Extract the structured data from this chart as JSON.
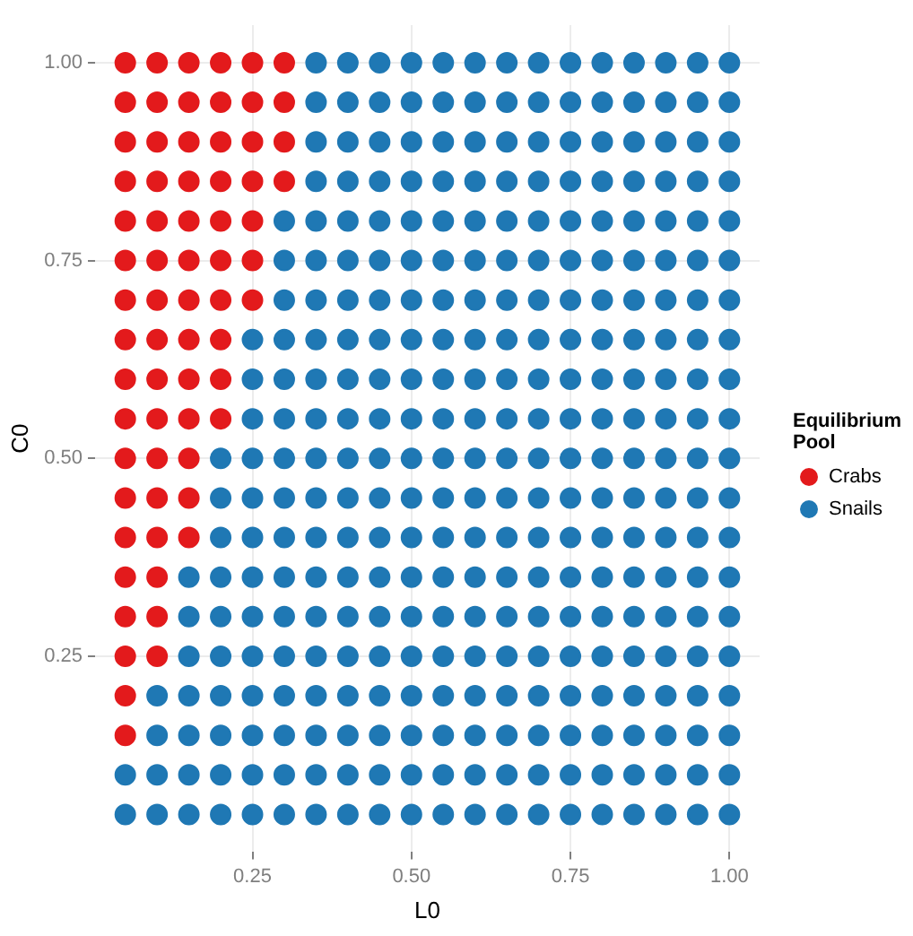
{
  "chart_data": {
    "type": "scatter",
    "xlabel": "L0",
    "ylabel": "C0",
    "legend_title": "Equilibrium Pool",
    "legend": "right",
    "grid": true,
    "marker": "circle",
    "xlim": [
      0.0025,
      1.0475
    ],
    "ylim": [
      0.0025,
      1.0475
    ],
    "xticks": [
      {
        "value": 0.25,
        "label": "0.25"
      },
      {
        "value": 0.5,
        "label": "0.50"
      },
      {
        "value": 0.75,
        "label": "0.75"
      },
      {
        "value": 1,
        "label": "1.00"
      }
    ],
    "yticks": [
      {
        "value": 0.25,
        "label": "0.25"
      },
      {
        "value": 0.5,
        "label": "0.50"
      },
      {
        "value": 0.75,
        "label": "0.75"
      },
      {
        "value": 1,
        "label": "1.00"
      }
    ],
    "series": [
      {
        "name": "Crabs",
        "color": "#e31a1c",
        "x": [
          0.05,
          0.1,
          0.15,
          0.2,
          0.25,
          0.3,
          0.05,
          0.1,
          0.15,
          0.2,
          0.25,
          0.3,
          0.05,
          0.1,
          0.15,
          0.2,
          0.25,
          0.3,
          0.05,
          0.1,
          0.15,
          0.2,
          0.25,
          0.3,
          0.05,
          0.1,
          0.15,
          0.2,
          0.25,
          0.05,
          0.1,
          0.15,
          0.2,
          0.25,
          0.05,
          0.1,
          0.15,
          0.2,
          0.25,
          0.05,
          0.1,
          0.15,
          0.2,
          0.05,
          0.1,
          0.15,
          0.2,
          0.05,
          0.1,
          0.15,
          0.2,
          0.05,
          0.1,
          0.15,
          0.05,
          0.1,
          0.15,
          0.05,
          0.1,
          0.15,
          0.05,
          0.1,
          0.05,
          0.1,
          0.05,
          0.1,
          0.05,
          0.05
        ],
        "values": [
          1,
          1,
          1,
          1,
          1,
          1,
          0.95,
          0.95,
          0.95,
          0.95,
          0.95,
          0.95,
          0.9,
          0.9,
          0.9,
          0.9,
          0.9,
          0.9,
          0.85,
          0.85,
          0.85,
          0.85,
          0.85,
          0.85,
          0.8,
          0.8,
          0.8,
          0.8,
          0.8,
          0.75,
          0.75,
          0.75,
          0.75,
          0.75,
          0.7,
          0.7,
          0.7,
          0.7,
          0.7,
          0.65,
          0.65,
          0.65,
          0.65,
          0.6,
          0.6,
          0.6,
          0.6,
          0.55,
          0.55,
          0.55,
          0.55,
          0.5,
          0.5,
          0.5,
          0.45,
          0.45,
          0.45,
          0.4,
          0.4,
          0.4,
          0.35,
          0.35,
          0.3,
          0.3,
          0.25,
          0.25,
          0.2,
          0.15
        ]
      },
      {
        "name": "Snails",
        "color": "#1f78b4",
        "x": [
          0.35,
          0.4,
          0.45,
          0.5,
          0.55,
          0.6,
          0.65,
          0.7,
          0.75,
          0.8,
          0.85,
          0.9,
          0.95,
          1,
          0.35,
          0.4,
          0.45,
          0.5,
          0.55,
          0.6,
          0.65,
          0.7,
          0.75,
          0.8,
          0.85,
          0.9,
          0.95,
          1,
          0.35,
          0.4,
          0.45,
          0.5,
          0.55,
          0.6,
          0.65,
          0.7,
          0.75,
          0.8,
          0.85,
          0.9,
          0.95,
          1,
          0.35,
          0.4,
          0.45,
          0.5,
          0.55,
          0.6,
          0.65,
          0.7,
          0.75,
          0.8,
          0.85,
          0.9,
          0.95,
          1,
          0.3,
          0.35,
          0.4,
          0.45,
          0.5,
          0.55,
          0.6,
          0.65,
          0.7,
          0.75,
          0.8,
          0.85,
          0.9,
          0.95,
          1,
          0.3,
          0.35,
          0.4,
          0.45,
          0.5,
          0.55,
          0.6,
          0.65,
          0.7,
          0.75,
          0.8,
          0.85,
          0.9,
          0.95,
          1,
          0.3,
          0.35,
          0.4,
          0.45,
          0.5,
          0.55,
          0.6,
          0.65,
          0.7,
          0.75,
          0.8,
          0.85,
          0.9,
          0.95,
          1,
          0.25,
          0.3,
          0.35,
          0.4,
          0.45,
          0.5,
          0.55,
          0.6,
          0.65,
          0.7,
          0.75,
          0.8,
          0.85,
          0.9,
          0.95,
          1,
          0.25,
          0.3,
          0.35,
          0.4,
          0.45,
          0.5,
          0.55,
          0.6,
          0.65,
          0.7,
          0.75,
          0.8,
          0.85,
          0.9,
          0.95,
          1,
          0.25,
          0.3,
          0.35,
          0.4,
          0.45,
          0.5,
          0.55,
          0.6,
          0.65,
          0.7,
          0.75,
          0.8,
          0.85,
          0.9,
          0.95,
          1,
          0.2,
          0.25,
          0.3,
          0.35,
          0.4,
          0.45,
          0.5,
          0.55,
          0.6,
          0.65,
          0.7,
          0.75,
          0.8,
          0.85,
          0.9,
          0.95,
          1,
          0.2,
          0.25,
          0.3,
          0.35,
          0.4,
          0.45,
          0.5,
          0.55,
          0.6,
          0.65,
          0.7,
          0.75,
          0.8,
          0.85,
          0.9,
          0.95,
          1,
          0.2,
          0.25,
          0.3,
          0.35,
          0.4,
          0.45,
          0.5,
          0.55,
          0.6,
          0.65,
          0.7,
          0.75,
          0.8,
          0.85,
          0.9,
          0.95,
          1,
          0.15,
          0.2,
          0.25,
          0.3,
          0.35,
          0.4,
          0.45,
          0.5,
          0.55,
          0.6,
          0.65,
          0.7,
          0.75,
          0.8,
          0.85,
          0.9,
          0.95,
          1,
          0.15,
          0.2,
          0.25,
          0.3,
          0.35,
          0.4,
          0.45,
          0.5,
          0.55,
          0.6,
          0.65,
          0.7,
          0.75,
          0.8,
          0.85,
          0.9,
          0.95,
          1,
          0.15,
          0.2,
          0.25,
          0.3,
          0.35,
          0.4,
          0.45,
          0.5,
          0.55,
          0.6,
          0.65,
          0.7,
          0.75,
          0.8,
          0.85,
          0.9,
          0.95,
          1,
          0.1,
          0.15,
          0.2,
          0.25,
          0.3,
          0.35,
          0.4,
          0.45,
          0.5,
          0.55,
          0.6,
          0.65,
          0.7,
          0.75,
          0.8,
          0.85,
          0.9,
          0.95,
          1,
          0.1,
          0.15,
          0.2,
          0.25,
          0.3,
          0.35,
          0.4,
          0.45,
          0.5,
          0.55,
          0.6,
          0.65,
          0.7,
          0.75,
          0.8,
          0.85,
          0.9,
          0.95,
          1,
          0.05,
          0.1,
          0.15,
          0.2,
          0.25,
          0.3,
          0.35,
          0.4,
          0.45,
          0.5,
          0.55,
          0.6,
          0.65,
          0.7,
          0.75,
          0.8,
          0.85,
          0.9,
          0.95,
          1,
          0.05,
          0.1,
          0.15,
          0.2,
          0.25,
          0.3,
          0.35,
          0.4,
          0.45,
          0.5,
          0.55,
          0.6,
          0.65,
          0.7,
          0.75,
          0.8,
          0.85,
          0.9,
          0.95,
          1
        ],
        "values": [
          1,
          1,
          1,
          1,
          1,
          1,
          1,
          1,
          1,
          1,
          1,
          1,
          1,
          1,
          0.95,
          0.95,
          0.95,
          0.95,
          0.95,
          0.95,
          0.95,
          0.95,
          0.95,
          0.95,
          0.95,
          0.95,
          0.95,
          0.95,
          0.9,
          0.9,
          0.9,
          0.9,
          0.9,
          0.9,
          0.9,
          0.9,
          0.9,
          0.9,
          0.9,
          0.9,
          0.9,
          0.9,
          0.85,
          0.85,
          0.85,
          0.85,
          0.85,
          0.85,
          0.85,
          0.85,
          0.85,
          0.85,
          0.85,
          0.85,
          0.85,
          0.85,
          0.8,
          0.8,
          0.8,
          0.8,
          0.8,
          0.8,
          0.8,
          0.8,
          0.8,
          0.8,
          0.8,
          0.8,
          0.8,
          0.8,
          0.8,
          0.75,
          0.75,
          0.75,
          0.75,
          0.75,
          0.75,
          0.75,
          0.75,
          0.75,
          0.75,
          0.75,
          0.75,
          0.75,
          0.75,
          0.75,
          0.7,
          0.7,
          0.7,
          0.7,
          0.7,
          0.7,
          0.7,
          0.7,
          0.7,
          0.7,
          0.7,
          0.7,
          0.7,
          0.7,
          0.7,
          0.65,
          0.65,
          0.65,
          0.65,
          0.65,
          0.65,
          0.65,
          0.65,
          0.65,
          0.65,
          0.65,
          0.65,
          0.65,
          0.65,
          0.65,
          0.65,
          0.6,
          0.6,
          0.6,
          0.6,
          0.6,
          0.6,
          0.6,
          0.6,
          0.6,
          0.6,
          0.6,
          0.6,
          0.6,
          0.6,
          0.6,
          0.6,
          0.55,
          0.55,
          0.55,
          0.55,
          0.55,
          0.55,
          0.55,
          0.55,
          0.55,
          0.55,
          0.55,
          0.55,
          0.55,
          0.55,
          0.55,
          0.55,
          0.5,
          0.5,
          0.5,
          0.5,
          0.5,
          0.5,
          0.5,
          0.5,
          0.5,
          0.5,
          0.5,
          0.5,
          0.5,
          0.5,
          0.5,
          0.5,
          0.5,
          0.45,
          0.45,
          0.45,
          0.45,
          0.45,
          0.45,
          0.45,
          0.45,
          0.45,
          0.45,
          0.45,
          0.45,
          0.45,
          0.45,
          0.45,
          0.45,
          0.45,
          0.4,
          0.4,
          0.4,
          0.4,
          0.4,
          0.4,
          0.4,
          0.4,
          0.4,
          0.4,
          0.4,
          0.4,
          0.4,
          0.4,
          0.4,
          0.4,
          0.4,
          0.35,
          0.35,
          0.35,
          0.35,
          0.35,
          0.35,
          0.35,
          0.35,
          0.35,
          0.35,
          0.35,
          0.35,
          0.35,
          0.35,
          0.35,
          0.35,
          0.35,
          0.35,
          0.3,
          0.3,
          0.3,
          0.3,
          0.3,
          0.3,
          0.3,
          0.3,
          0.3,
          0.3,
          0.3,
          0.3,
          0.3,
          0.3,
          0.3,
          0.3,
          0.3,
          0.3,
          0.25,
          0.25,
          0.25,
          0.25,
          0.25,
          0.25,
          0.25,
          0.25,
          0.25,
          0.25,
          0.25,
          0.25,
          0.25,
          0.25,
          0.25,
          0.25,
          0.25,
          0.25,
          0.2,
          0.2,
          0.2,
          0.2,
          0.2,
          0.2,
          0.2,
          0.2,
          0.2,
          0.2,
          0.2,
          0.2,
          0.2,
          0.2,
          0.2,
          0.2,
          0.2,
          0.2,
          0.2,
          0.15,
          0.15,
          0.15,
          0.15,
          0.15,
          0.15,
          0.15,
          0.15,
          0.15,
          0.15,
          0.15,
          0.15,
          0.15,
          0.15,
          0.15,
          0.15,
          0.15,
          0.15,
          0.15,
          0.1,
          0.1,
          0.1,
          0.1,
          0.1,
          0.1,
          0.1,
          0.1,
          0.1,
          0.1,
          0.1,
          0.1,
          0.1,
          0.1,
          0.1,
          0.1,
          0.1,
          0.1,
          0.1,
          0.1,
          0.05,
          0.05,
          0.05,
          0.05,
          0.05,
          0.05,
          0.05,
          0.05,
          0.05,
          0.05,
          0.05,
          0.05,
          0.05,
          0.05,
          0.05,
          0.05,
          0.05,
          0.05,
          0.05,
          0.05
        ]
      }
    ]
  }
}
